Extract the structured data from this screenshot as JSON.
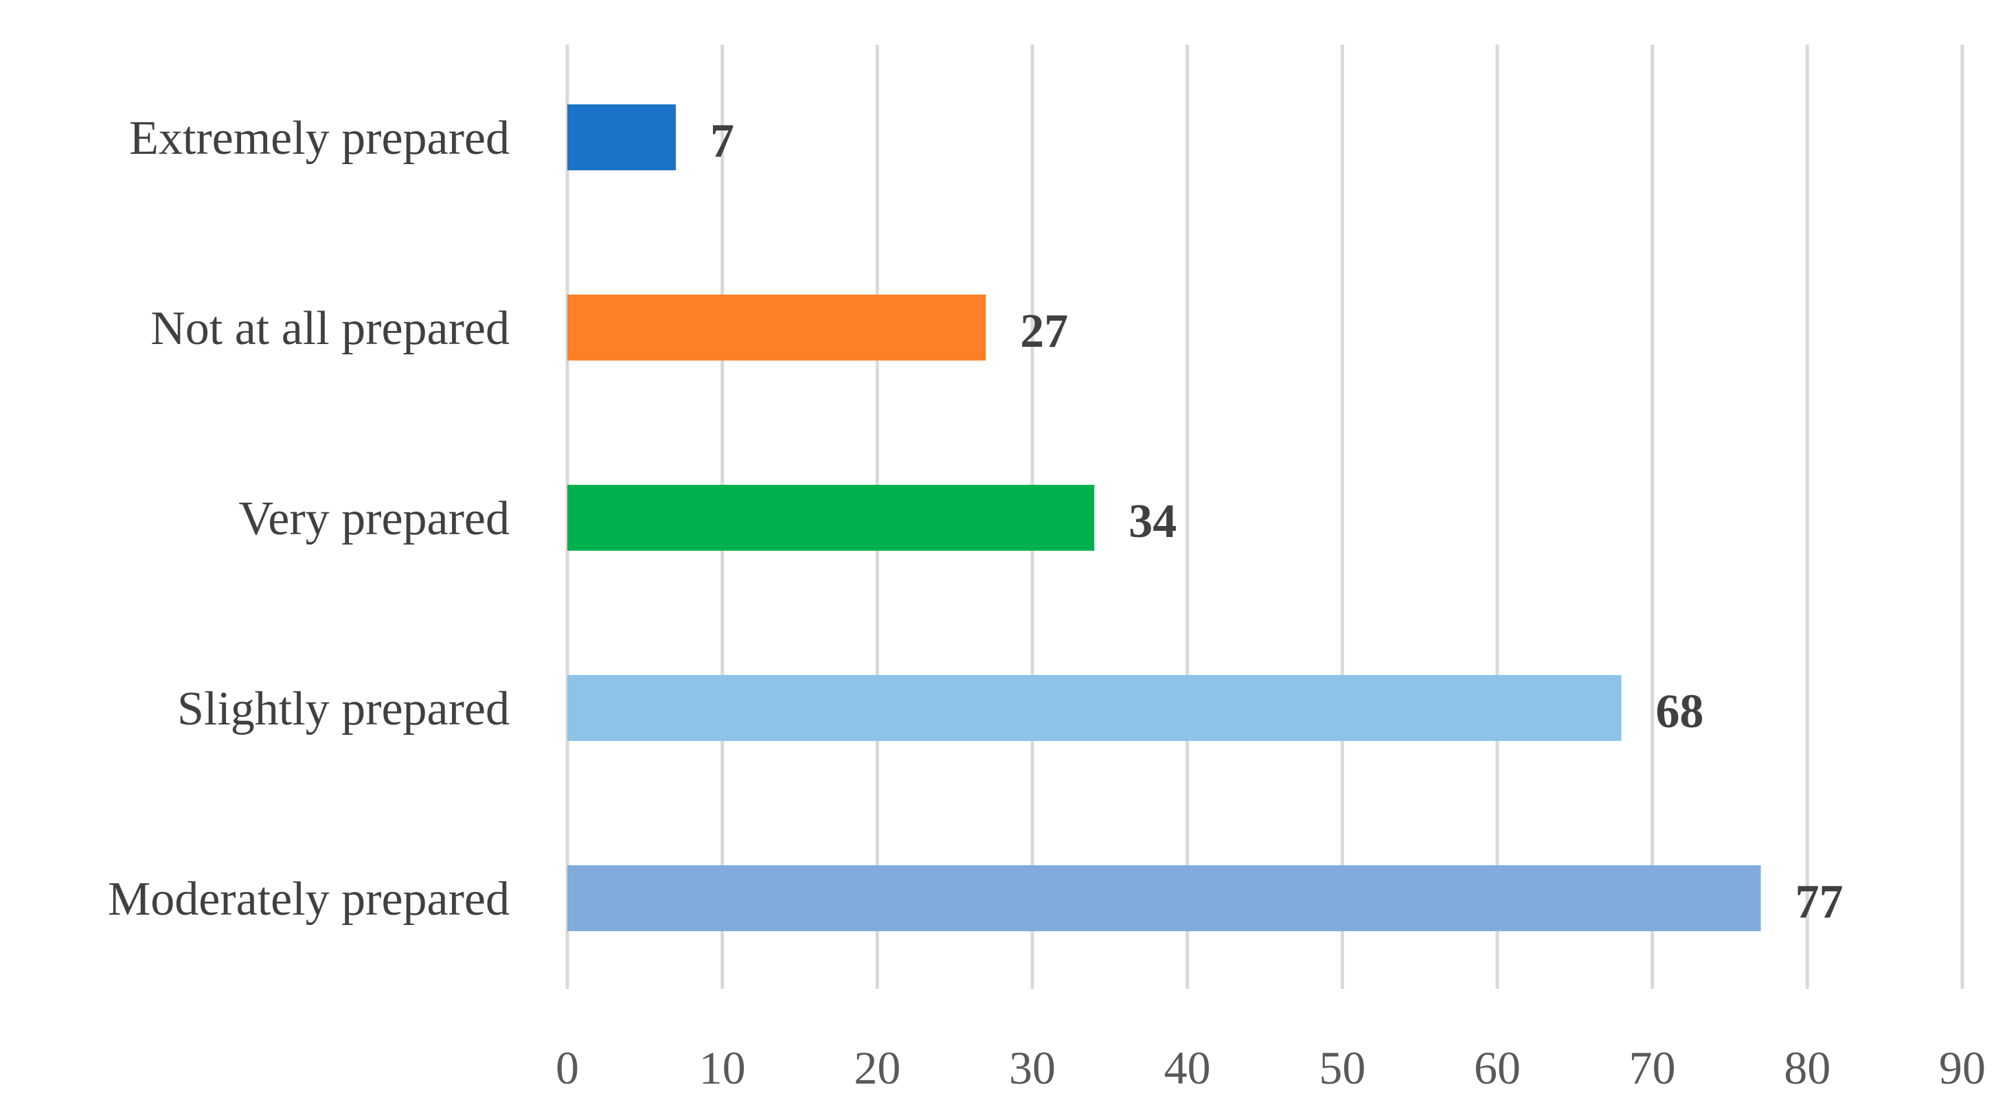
{
  "chart_data": {
    "type": "bar",
    "orientation": "horizontal",
    "title": "",
    "xlabel": "",
    "ylabel": "",
    "categories": [
      "Extremely prepared",
      "Not at all prepared",
      "Very prepared",
      "Slightly prepared",
      "Moderately prepared"
    ],
    "values": [
      7,
      27,
      34,
      68,
      77
    ],
    "data_labels": [
      "7",
      "27",
      "34",
      "68",
      "77"
    ],
    "bar_colors": [
      "#1b72c8",
      "#fd7f27",
      "#00b04f",
      "#8cc3e6",
      "#82abdd"
    ],
    "xlim": [
      0,
      90
    ],
    "x_ticks": [
      0,
      10,
      20,
      30,
      40,
      50,
      60,
      70,
      80,
      90
    ],
    "x_tick_labels": [
      "0",
      "10",
      "20",
      "30",
      "40",
      "50",
      "60",
      "70",
      "80",
      "90"
    ],
    "grid": true,
    "legend": "none",
    "gridline_color": "#d9d9d9"
  }
}
